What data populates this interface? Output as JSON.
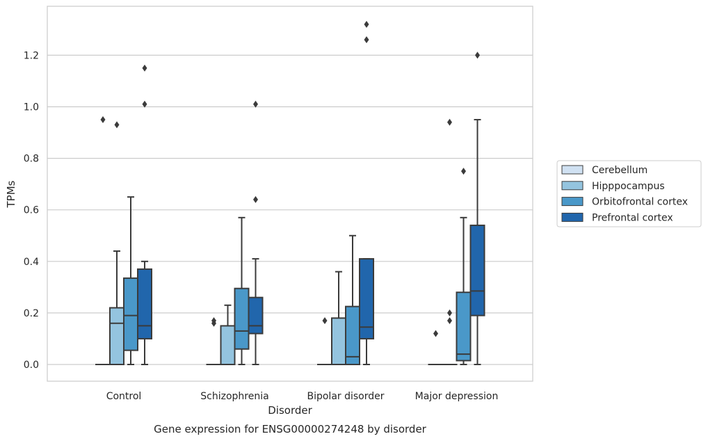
{
  "chart_data": {
    "type": "box",
    "title": "",
    "caption": "Gene expression for ENSG00000274248 by disorder",
    "xlabel": "Disorder",
    "ylabel": "TPMs",
    "ylim": [
      -0.065,
      1.39
    ],
    "yticks": [
      "0.0",
      "0.2",
      "0.4",
      "0.6",
      "0.8",
      "1.0",
      "1.2"
    ],
    "grid": true,
    "legend_position": "right",
    "categories": [
      "Control",
      "Schizophrenia",
      "Bipolar disorder",
      "Major depression"
    ],
    "series": [
      {
        "name": "Cerebellum",
        "color": "#d0e1f2",
        "boxes": [
          {
            "category": "Control",
            "whisker_low": 0,
            "q1": 0,
            "median": 0,
            "q3": 0,
            "whisker_high": 0,
            "outliers": [
              0.95
            ]
          },
          {
            "category": "Schizophrenia",
            "whisker_low": 0,
            "q1": 0,
            "median": 0,
            "q3": 0,
            "whisker_high": 0,
            "outliers": [
              0.17,
              0.16
            ]
          },
          {
            "category": "Bipolar disorder",
            "whisker_low": 0,
            "q1": 0,
            "median": 0,
            "q3": 0,
            "whisker_high": 0,
            "outliers": [
              0.17
            ]
          },
          {
            "category": "Major depression",
            "whisker_low": 0,
            "q1": 0,
            "median": 0,
            "q3": 0,
            "whisker_high": 0,
            "outliers": [
              0.12
            ]
          }
        ]
      },
      {
        "name": "Hipppocampus",
        "color": "#94c4df",
        "boxes": [
          {
            "category": "Control",
            "whisker_low": 0,
            "q1": 0,
            "median": 0.16,
            "q3": 0.22,
            "whisker_high": 0.44,
            "outliers": [
              0.93
            ]
          },
          {
            "category": "Schizophrenia",
            "whisker_low": 0,
            "q1": 0,
            "median": 0,
            "q3": 0.15,
            "whisker_high": 0.23,
            "outliers": []
          },
          {
            "category": "Bipolar disorder",
            "whisker_low": 0,
            "q1": 0,
            "median": 0,
            "q3": 0.18,
            "whisker_high": 0.36,
            "outliers": []
          },
          {
            "category": "Major depression",
            "whisker_low": 0,
            "q1": 0,
            "median": 0,
            "q3": 0,
            "whisker_high": 0,
            "outliers": [
              0.94,
              0.2,
              0.17
            ]
          }
        ]
      },
      {
        "name": "Orbitofrontal cortex",
        "color": "#4a98c9",
        "boxes": [
          {
            "category": "Control",
            "whisker_low": 0,
            "q1": 0.055,
            "median": 0.19,
            "q3": 0.335,
            "whisker_high": 0.65,
            "outliers": []
          },
          {
            "category": "Schizophrenia",
            "whisker_low": 0,
            "q1": 0.06,
            "median": 0.13,
            "q3": 0.295,
            "whisker_high": 0.57,
            "outliers": []
          },
          {
            "category": "Bipolar disorder",
            "whisker_low": 0,
            "q1": 0,
            "median": 0.03,
            "q3": 0.225,
            "whisker_high": 0.5,
            "outliers": []
          },
          {
            "category": "Major depression",
            "whisker_low": 0,
            "q1": 0.015,
            "median": 0.04,
            "q3": 0.28,
            "whisker_high": 0.57,
            "outliers": [
              0.75
            ]
          }
        ]
      },
      {
        "name": "Prefrontal cortex",
        "color": "#2166ac",
        "boxes": [
          {
            "category": "Control",
            "whisker_low": 0,
            "q1": 0.1,
            "median": 0.15,
            "q3": 0.37,
            "whisker_high": 0.4,
            "outliers": [
              1.15,
              1.01
            ]
          },
          {
            "category": "Schizophrenia",
            "whisker_low": 0,
            "q1": 0.12,
            "median": 0.15,
            "q3": 0.26,
            "whisker_high": 0.41,
            "outliers": [
              1.01,
              0.64
            ]
          },
          {
            "category": "Bipolar disorder",
            "whisker_low": 0,
            "q1": 0.1,
            "median": 0.145,
            "q3": 0.41,
            "whisker_high": 0.41,
            "outliers": [
              1.32,
              1.26
            ]
          },
          {
            "category": "Major depression",
            "whisker_low": 0,
            "q1": 0.19,
            "median": 0.285,
            "q3": 0.54,
            "whisker_high": 0.95,
            "outliers": [
              1.2
            ]
          }
        ]
      }
    ]
  }
}
